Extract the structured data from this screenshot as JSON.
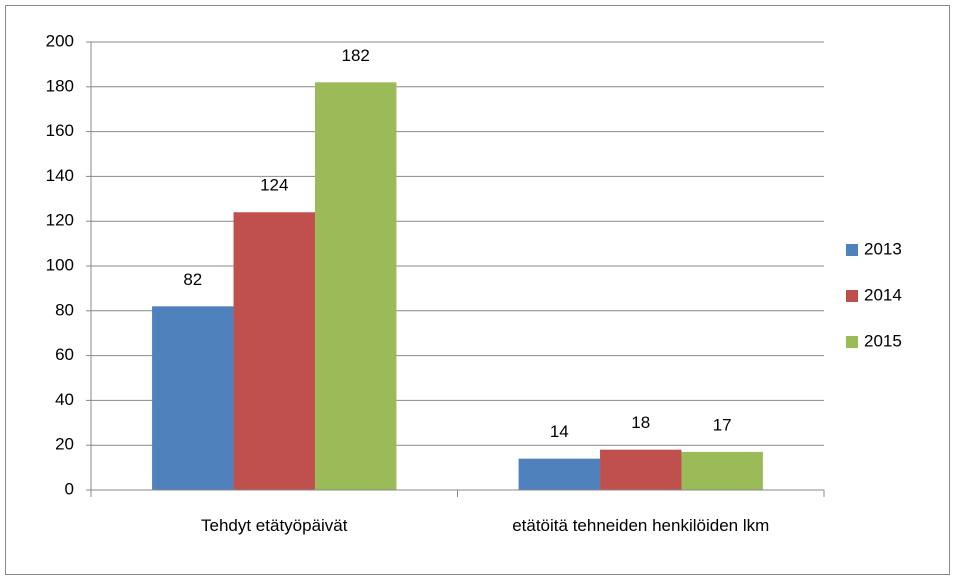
{
  "chart_data": {
    "type": "bar",
    "categories": [
      "Tehdyt etätyöpäivät",
      "etätöitä tehneiden henkilöiden lkm"
    ],
    "series": [
      {
        "name": "2013",
        "color": "#4f81bd",
        "values": [
          82,
          14
        ]
      },
      {
        "name": "2014",
        "color": "#c0504d",
        "values": [
          124,
          18
        ]
      },
      {
        "name": "2015",
        "color": "#9bbb59",
        "values": [
          182,
          17
        ]
      }
    ],
    "ylim": [
      0,
      200
    ],
    "yticks": [
      0,
      20,
      40,
      60,
      80,
      100,
      120,
      140,
      160,
      180,
      200
    ],
    "grid": true,
    "legend": "right"
  }
}
